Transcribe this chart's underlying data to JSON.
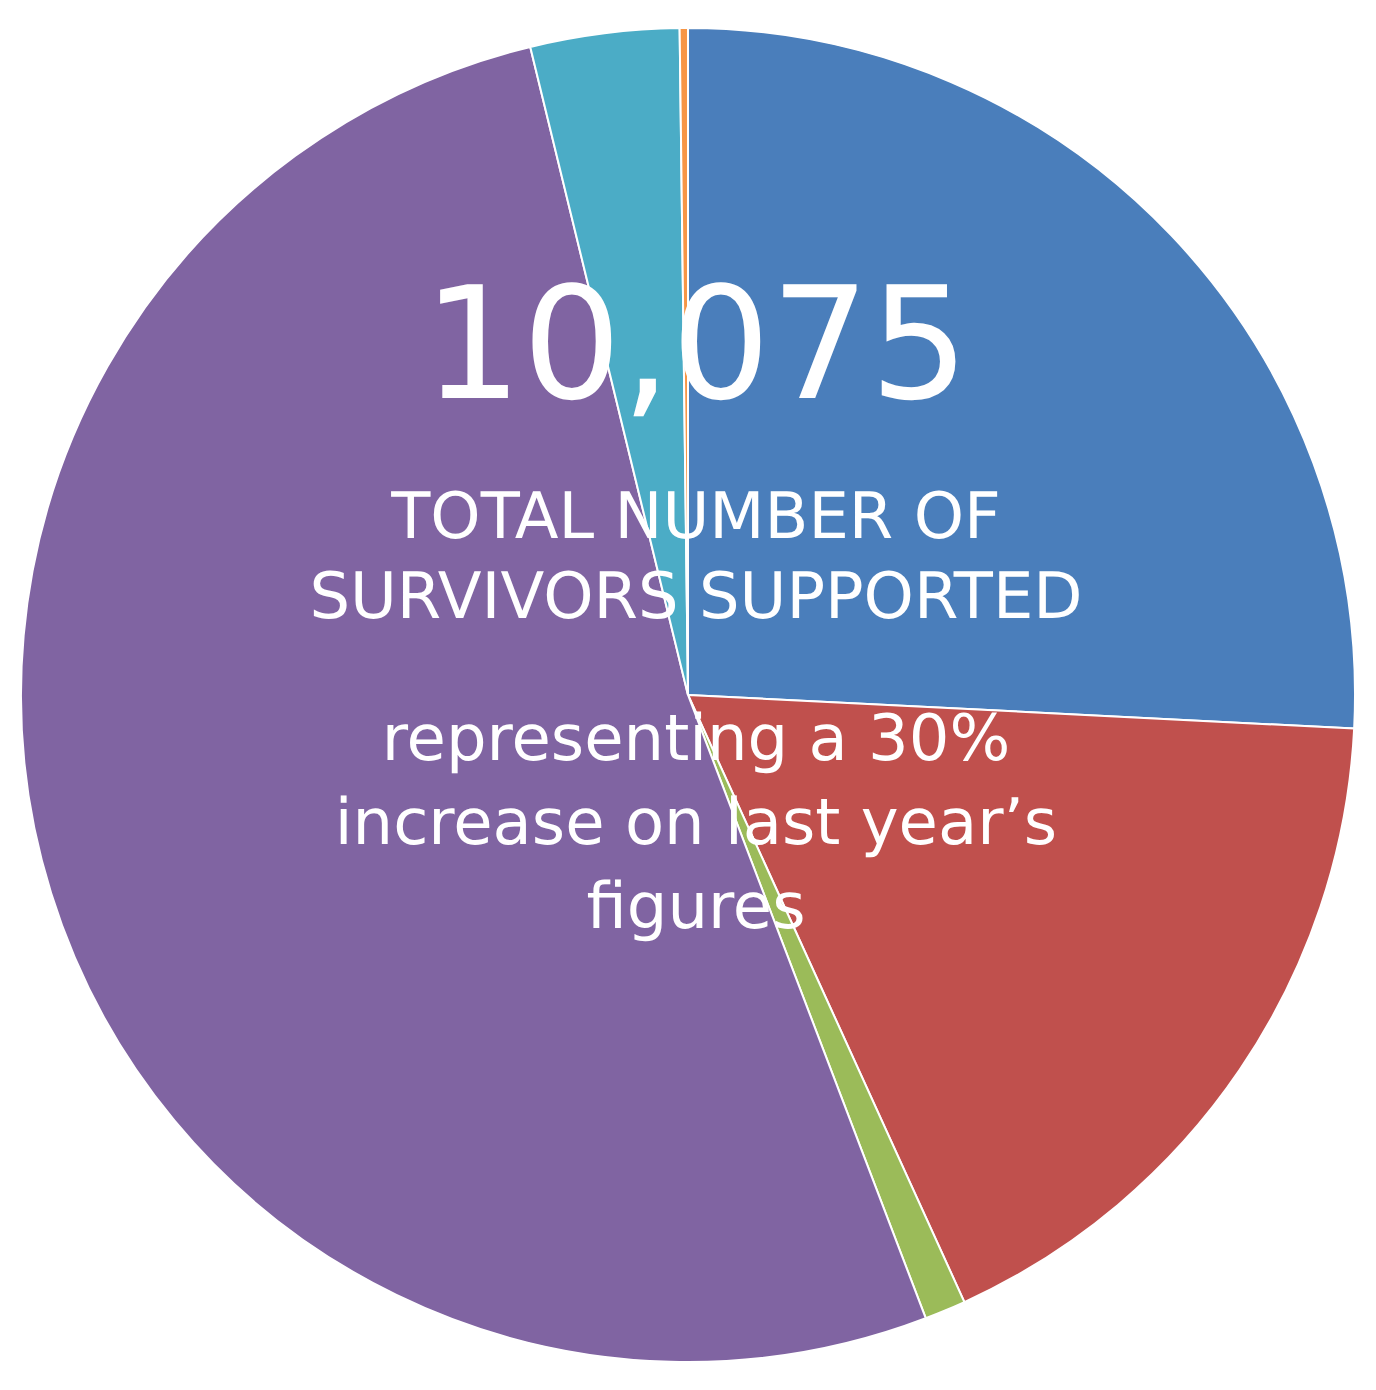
{
  "chart_data": {
    "type": "pie",
    "title": "10,075",
    "subtitle": "TOTAL NUMBER OF SURVIVORS SUPPORTED",
    "annotations": [
      "representing a 30% increase on last year’s figures"
    ],
    "categories": [
      null,
      null,
      null,
      null,
      null,
      null
    ],
    "values": [
      25.8,
      17.4,
      1.0,
      52.0,
      3.6,
      0.2
    ],
    "colors": [
      "#4a7ebb",
      "#c0504d",
      "#9bbb59",
      "#8064a2",
      "#4bacc6",
      "#f79646"
    ]
  }
}
